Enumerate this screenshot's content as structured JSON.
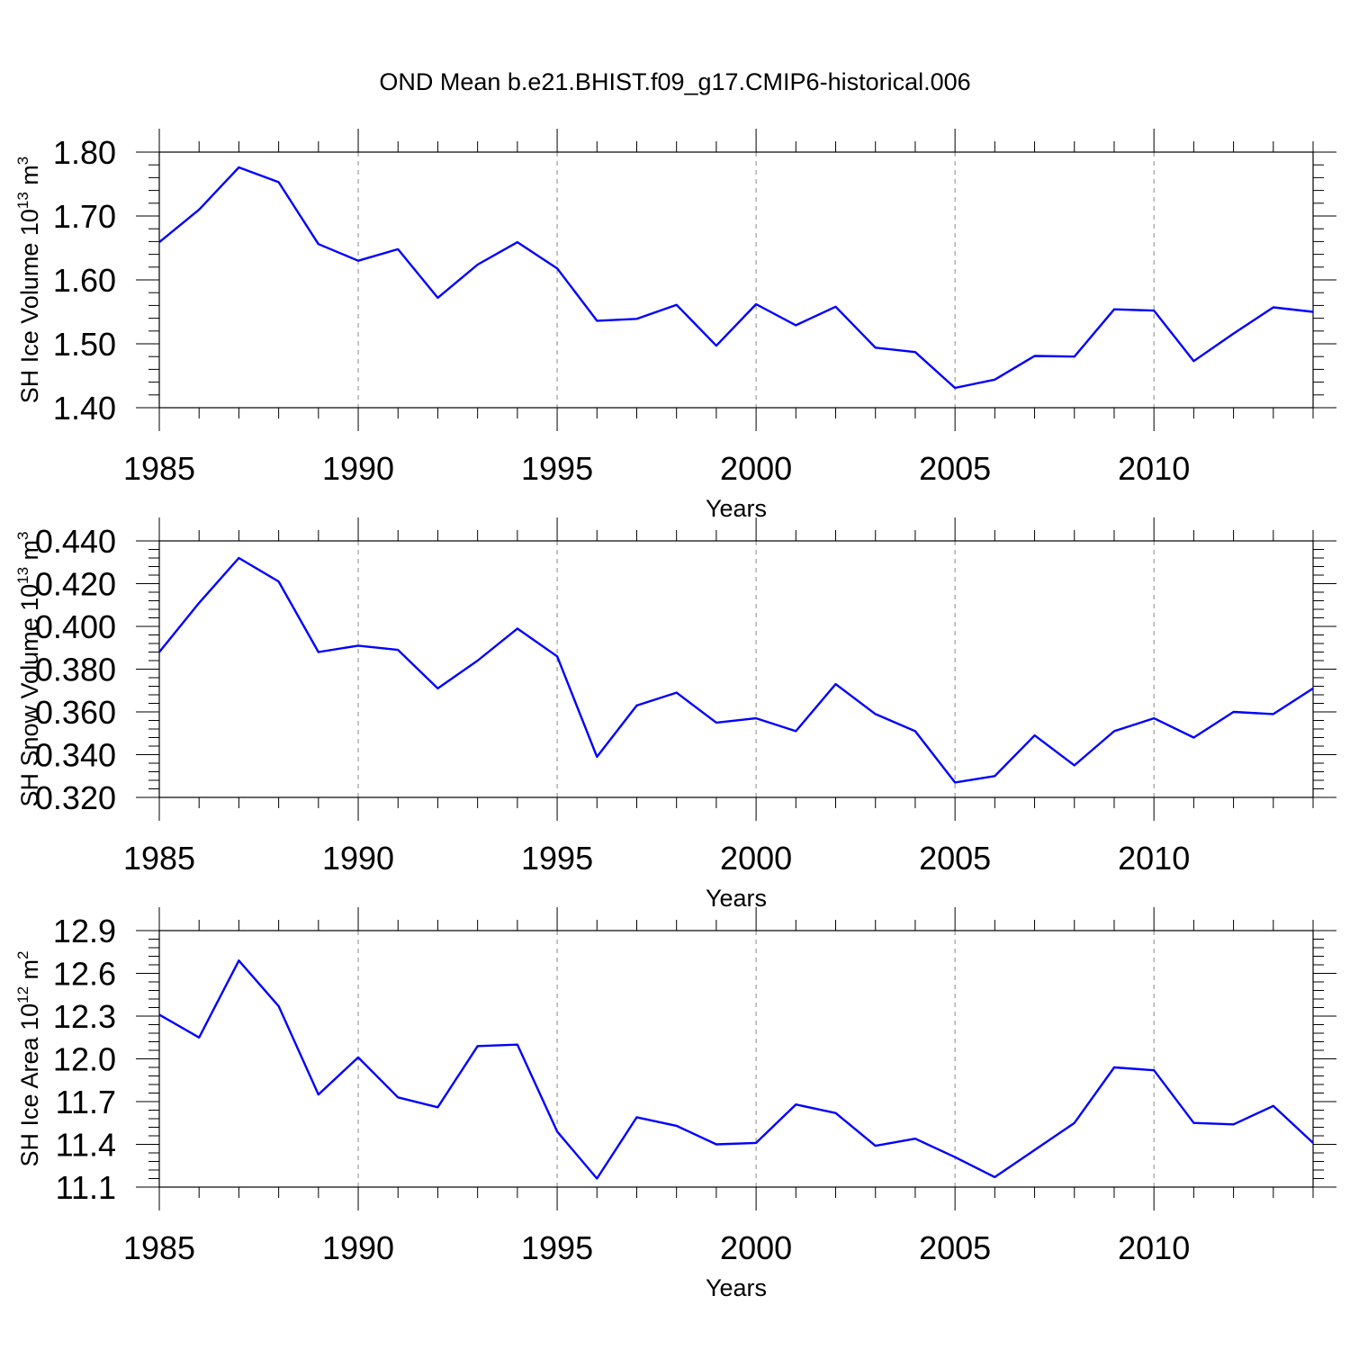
{
  "title": "OND Mean b.e21.BHIST.f09_g17.CMIP6-historical.006",
  "colors": {
    "line": "#0000ff",
    "axis": "#000000",
    "grid": "#888888"
  },
  "chart_data": [
    {
      "type": "line",
      "ylabel": "SH Ice Volume 10",
      "ylabel_exp": "13",
      "ylabel_unit": " m",
      "ylabel_unit_exp": "3",
      "xlabel": "Years",
      "xlim": [
        1985,
        2014
      ],
      "ylim": [
        1.4,
        1.8
      ],
      "yticks": [
        "1.40",
        "1.50",
        "1.60",
        "1.70",
        "1.80"
      ],
      "xticks": [
        "1985",
        "1990",
        "1995",
        "2000",
        "2005",
        "2010"
      ],
      "x": [
        1985,
        1986,
        1987,
        1988,
        1989,
        1990,
        1991,
        1992,
        1993,
        1994,
        1995,
        1996,
        1997,
        1998,
        1999,
        2000,
        2001,
        2002,
        2003,
        2004,
        2005,
        2006,
        2007,
        2008,
        2009,
        2010,
        2011,
        2012,
        2013,
        2014
      ],
      "values": [
        1.659,
        1.71,
        1.776,
        1.753,
        1.656,
        1.63,
        1.648,
        1.572,
        1.624,
        1.659,
        1.618,
        1.536,
        1.539,
        1.561,
        1.497,
        1.562,
        1.529,
        1.558,
        1.494,
        1.487,
        1.431,
        1.444,
        1.481,
        1.48,
        1.554,
        1.552,
        1.473,
        1.516,
        1.557,
        1.55
      ]
    },
    {
      "type": "line",
      "ylabel": "SH Snow Volume 10",
      "ylabel_exp": "13",
      "ylabel_unit": " m",
      "ylabel_unit_exp": "3",
      "xlabel": "Years",
      "xlim": [
        1985,
        2014
      ],
      "ylim": [
        0.32,
        0.44
      ],
      "yticks": [
        "0.320",
        "0.340",
        "0.360",
        "0.380",
        "0.400",
        "0.420",
        "0.440"
      ],
      "xticks": [
        "1985",
        "1990",
        "1995",
        "2000",
        "2005",
        "2010"
      ],
      "x": [
        1985,
        1986,
        1987,
        1988,
        1989,
        1990,
        1991,
        1992,
        1993,
        1994,
        1995,
        1996,
        1997,
        1998,
        1999,
        2000,
        2001,
        2002,
        2003,
        2004,
        2005,
        2006,
        2007,
        2008,
        2009,
        2010,
        2011,
        2012,
        2013,
        2014
      ],
      "values": [
        0.388,
        0.411,
        0.432,
        0.421,
        0.388,
        0.391,
        0.389,
        0.371,
        0.384,
        0.399,
        0.386,
        0.339,
        0.363,
        0.369,
        0.355,
        0.357,
        0.351,
        0.373,
        0.359,
        0.351,
        0.327,
        0.33,
        0.349,
        0.335,
        0.351,
        0.357,
        0.348,
        0.36,
        0.359,
        0.371
      ]
    },
    {
      "type": "line",
      "ylabel": "SH Ice Area 10",
      "ylabel_exp": "12",
      "ylabel_unit": " m",
      "ylabel_unit_exp": "2",
      "xlabel": "Years",
      "xlim": [
        1985,
        2014
      ],
      "ylim": [
        11.1,
        12.9
      ],
      "yticks": [
        "11.1",
        "11.4",
        "11.7",
        "12.0",
        "12.3",
        "12.6",
        "12.9"
      ],
      "xticks": [
        "1985",
        "1990",
        "1995",
        "2000",
        "2005",
        "2010"
      ],
      "x": [
        1985,
        1986,
        1987,
        1988,
        1989,
        1990,
        1991,
        1992,
        1993,
        1994,
        1995,
        1996,
        1997,
        1998,
        1999,
        2000,
        2001,
        2002,
        2003,
        2004,
        2005,
        2006,
        2007,
        2008,
        2009,
        2010,
        2011,
        2012,
        2013,
        2014
      ],
      "values": [
        12.31,
        12.15,
        12.69,
        12.37,
        11.75,
        12.01,
        11.73,
        11.66,
        12.09,
        12.1,
        11.49,
        11.16,
        11.59,
        11.53,
        11.4,
        11.41,
        11.68,
        11.62,
        11.39,
        11.44,
        11.31,
        11.17,
        11.36,
        11.55,
        11.94,
        11.92,
        11.55,
        11.54,
        11.67,
        11.41
      ]
    }
  ]
}
